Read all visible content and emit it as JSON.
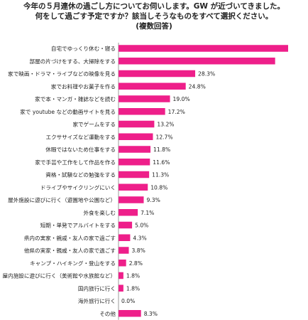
{
  "chart_data": {
    "type": "bar",
    "orientation": "horizontal",
    "title_lines": [
      "今年の５月連休の過ごし方についてお伺いします。GW が近づいてきました。",
      "何をして過ごす予定ですか？該当しそうなものをすべて選択ください。",
      "(複数回答)"
    ],
    "categories": [
      "自宅でゆっくり休む・寝る",
      "部屋の片づけをする、大掃除をする",
      "家で映画・ドラマ・ライブなどの映像を見る",
      "家でお料理やお菓子を作る",
      "家で本・マンガ・雑誌などを読む",
      "家で youtube などの動画サイトを見る",
      "家でゲームをする",
      "エクササイズなど運動をする",
      "休暇ではないため仕事をする",
      "家で手芸や工作をして作品を作る",
      "資格・試験などの勉強をする",
      "ドライブやサイクリングにいく",
      "屋外施設に遊びに行く（遊園地や公園など）",
      "外食を楽しむ",
      "短期・単発でアルバイトをする",
      "県内の実家・親戚・友人の家で過ごす",
      "他県の実家・親戚・友人の家で過ごす",
      "キャンプ・ハイキング・登山をする",
      "屋内施設に遊びに行く（美術館や水族館など）",
      "国内旅行に行く",
      "海外旅行に行く",
      "その他"
    ],
    "values": [
      62.6,
      57.8,
      28.3,
      24.8,
      19.0,
      17.2,
      13.2,
      12.7,
      11.8,
      11.6,
      11.3,
      10.8,
      9.3,
      7.1,
      5.0,
      4.3,
      3.8,
      2.8,
      1.8,
      1.8,
      0.0,
      8.3
    ],
    "value_labels": [
      "62.6%",
      "57.8%",
      "28.3%",
      "24.8%",
      "19.0%",
      "17.2%",
      "13.2%",
      "12.7%",
      "11.8%",
      "11.6%",
      "11.3%",
      "10.8%",
      "9.3%",
      "7.1%",
      "5.0%",
      "4.3%",
      "3.8%",
      "2.8%",
      "1.8%",
      "1.8%",
      "0.0%",
      "8.3%"
    ],
    "xlim": [
      0,
      62.6
    ],
    "bar_color": "#ee1f8a",
    "grid": false,
    "legend": "none"
  }
}
